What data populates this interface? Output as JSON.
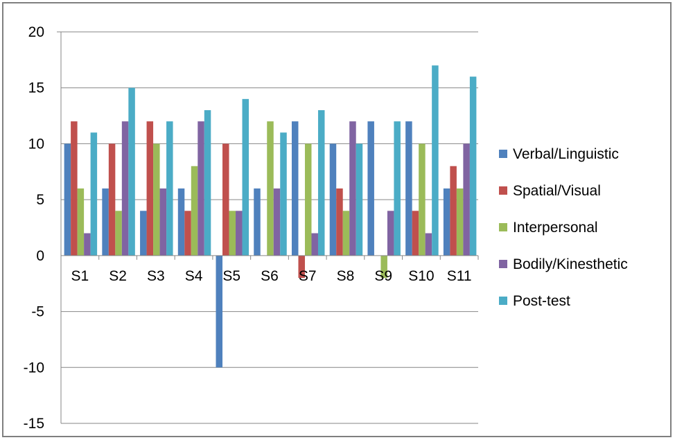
{
  "chart_data": {
    "type": "bar",
    "title": "",
    "xlabel": "",
    "ylabel": "",
    "ylim": [
      -15,
      20
    ],
    "yticks": [
      20,
      15,
      10,
      5,
      0,
      -5,
      -10,
      -15
    ],
    "grid": true,
    "legend_position": "right",
    "categories": [
      "S1",
      "S2",
      "S3",
      "S4",
      "S5",
      "S6",
      "S7",
      "S8",
      "S9",
      "S10",
      "S11"
    ],
    "series": [
      {
        "name": "Verbal/Linguistic",
        "color": "#4F81BD",
        "values": [
          10,
          6,
          4,
          6,
          -10,
          6,
          12,
          10,
          12,
          12,
          6
        ]
      },
      {
        "name": "Spatial/Visual",
        "color": "#C0504D",
        "values": [
          12,
          10,
          12,
          4,
          10,
          0,
          -2,
          6,
          0,
          4,
          8
        ]
      },
      {
        "name": "Interpersonal",
        "color": "#9BBB59",
        "values": [
          6,
          4,
          10,
          8,
          4,
          12,
          10,
          4,
          -2,
          10,
          6
        ]
      },
      {
        "name": "Bodily/Kinesthetic",
        "color": "#8064A2",
        "values": [
          2,
          12,
          6,
          12,
          4,
          6,
          2,
          12,
          4,
          2,
          10
        ]
      },
      {
        "name": "Post-test",
        "color": "#4BACC6",
        "values": [
          11,
          15,
          12,
          13,
          14,
          11,
          13,
          10,
          12,
          17,
          16
        ]
      }
    ]
  }
}
